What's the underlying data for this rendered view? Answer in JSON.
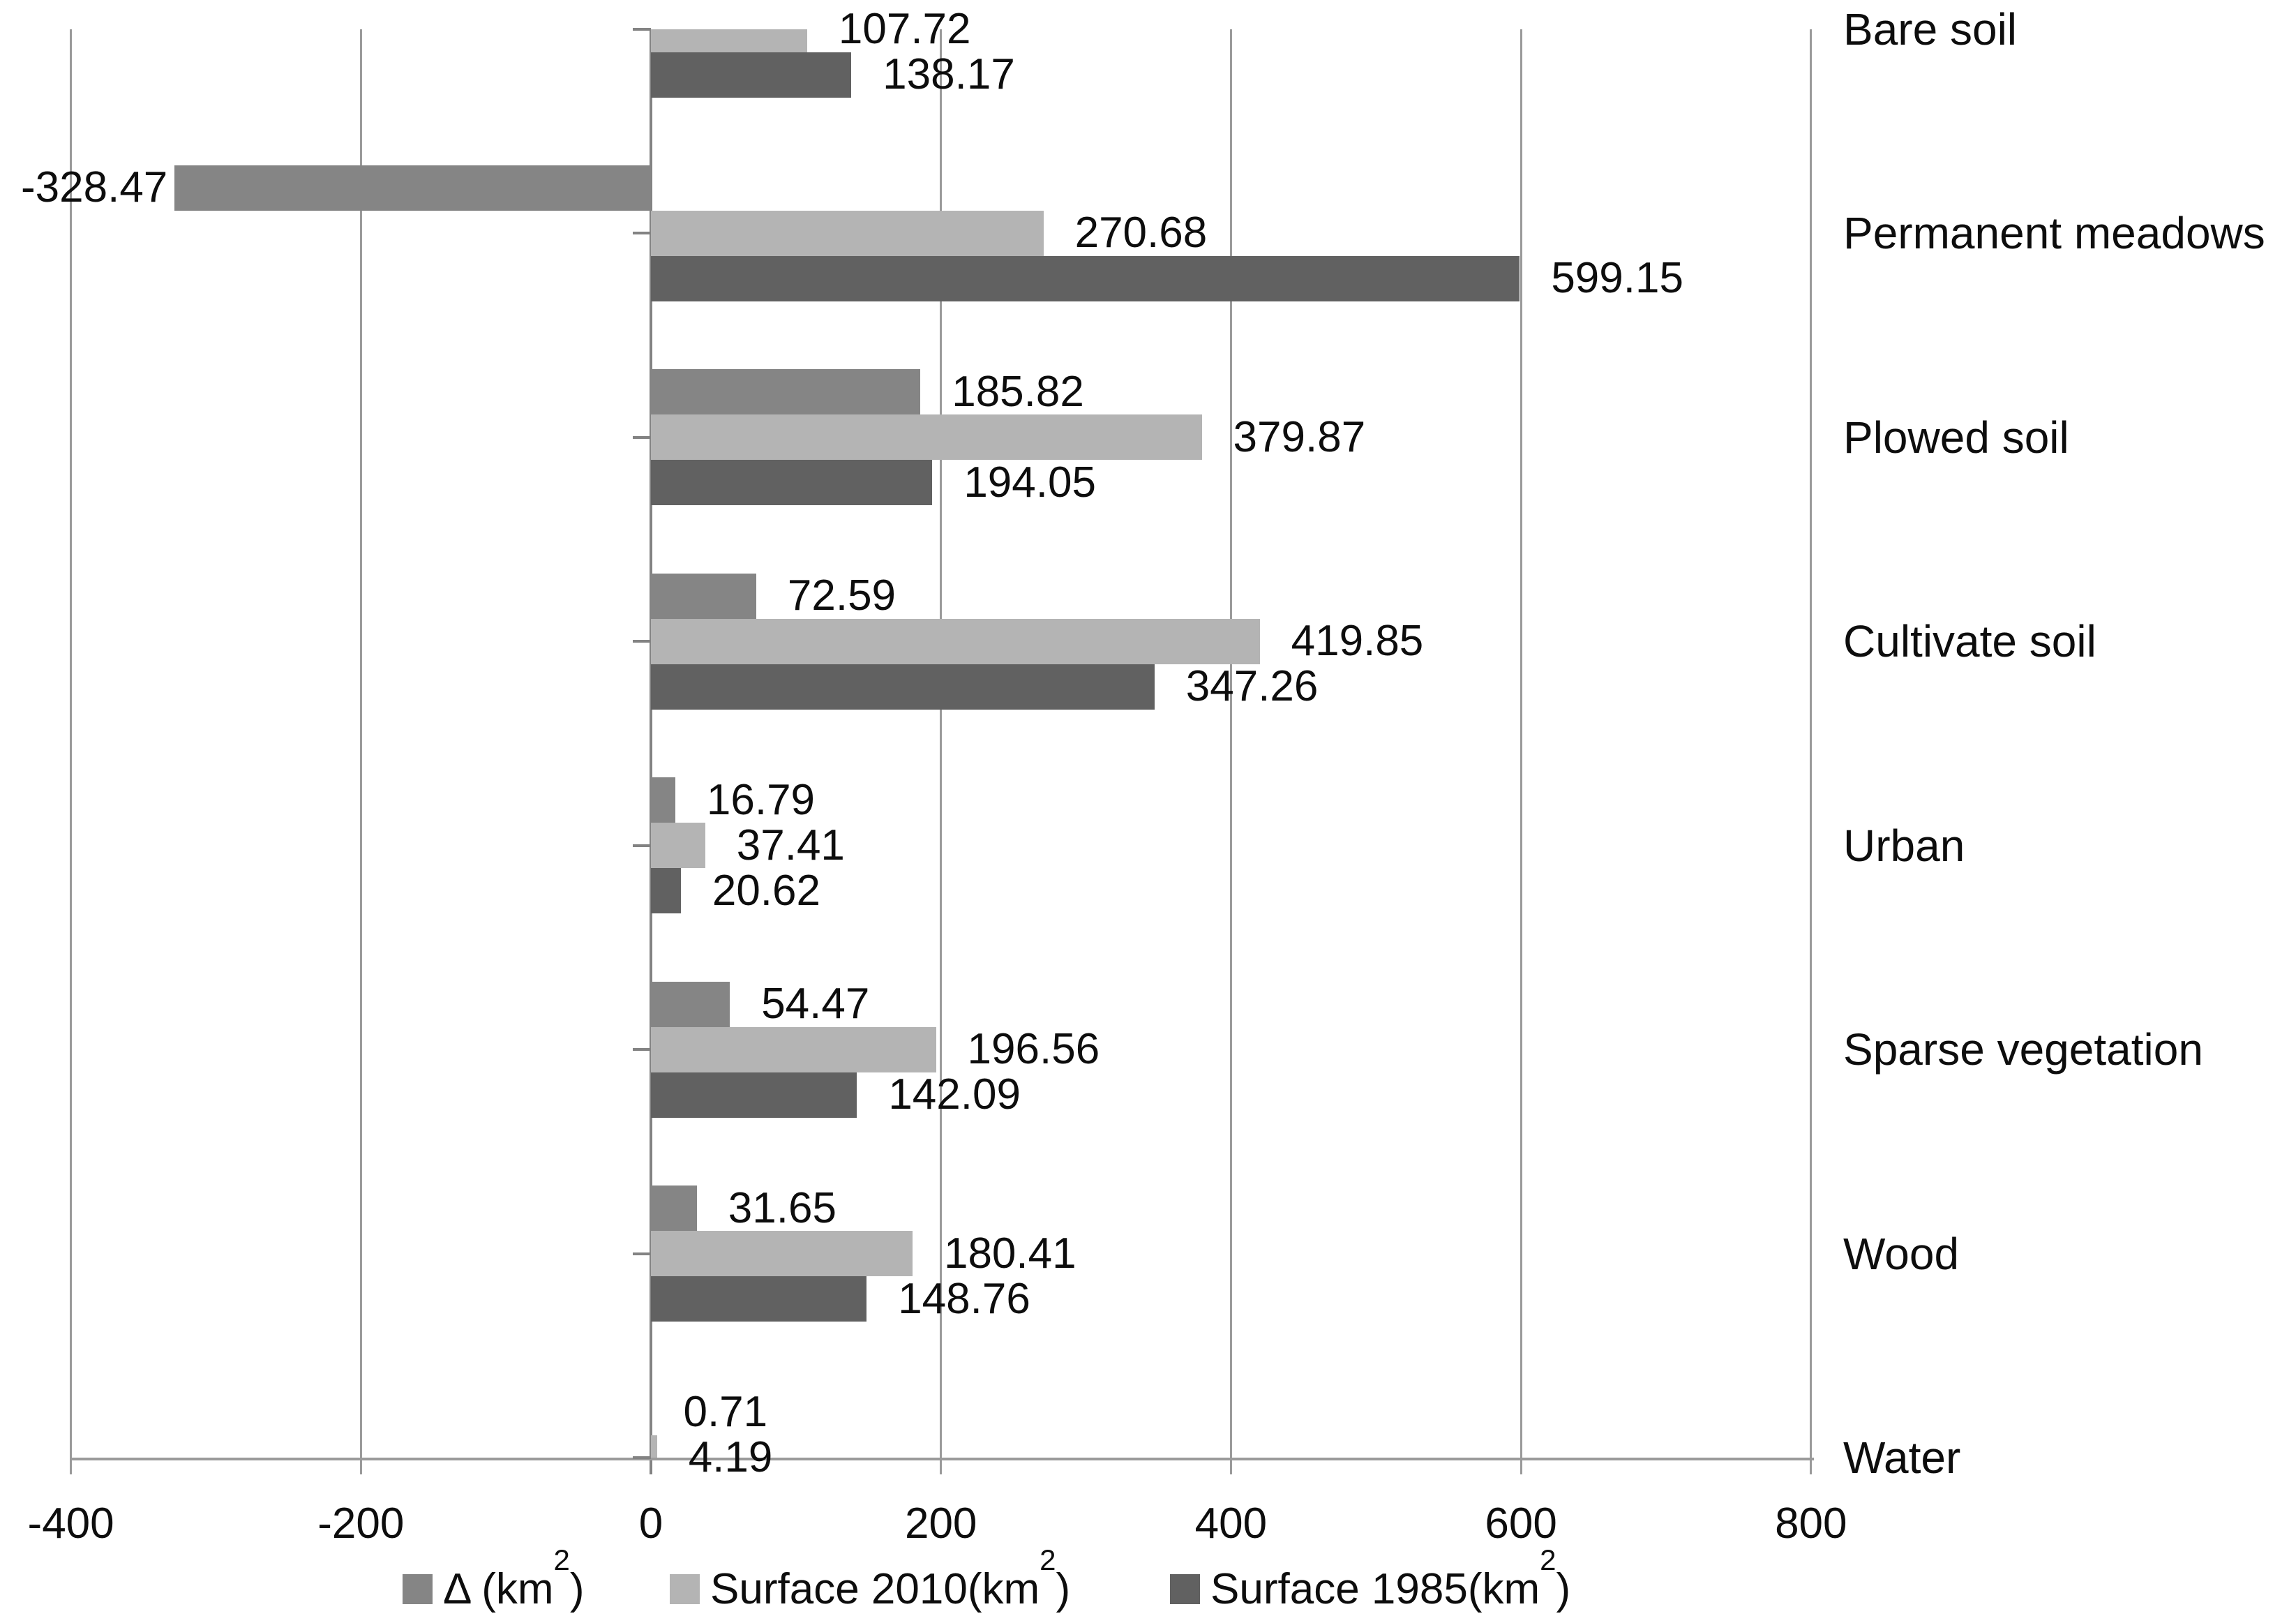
{
  "chart_data": {
    "type": "bar",
    "orientation": "horizontal",
    "title": "",
    "xlabel": "",
    "ylabel": "",
    "categories": [
      "Bare soil",
      "Permanent meadows",
      "Plowed soil",
      "Cultivate soil",
      "Urban",
      "Sparse vegetation",
      "Wood",
      "Water"
    ],
    "series": [
      {
        "name": "Δ (km2)",
        "color": "#858585",
        "values": [
          null,
          -328.47,
          185.82,
          72.59,
          16.79,
          54.47,
          31.65,
          0.71
        ]
      },
      {
        "name": "Surface 2010(km2)",
        "color": "#b4b4b4",
        "values": [
          107.72,
          270.68,
          379.87,
          419.85,
          37.41,
          196.56,
          180.41,
          4.19
        ]
      },
      {
        "name": "Surface 1985(km2)",
        "color": "#616161",
        "values": [
          138.17,
          599.15,
          194.05,
          347.26,
          20.62,
          142.09,
          148.76,
          null
        ]
      }
    ],
    "data_labels": [
      [
        null,
        "-328.47",
        "185.82",
        "72.59",
        "16.79",
        "54.47",
        "31.65",
        "0.71"
      ],
      [
        "107.72",
        "270.68",
        "379.87",
        "419.85",
        "37.41",
        "196.56",
        "180.41",
        "4.19"
      ],
      [
        "138.17",
        "599.15",
        "194.05",
        "347.26",
        "20.62",
        "142.09",
        "148.76",
        null
      ]
    ],
    "xlim": [
      -400,
      800
    ],
    "x_ticks": [
      "-400",
      "-200",
      "0",
      "200",
      "400",
      "600",
      "800"
    ],
    "x_tick_values": [
      -400,
      -200,
      0,
      200,
      400,
      600,
      800
    ],
    "grid": "vertical-only",
    "legend_position": "bottom"
  },
  "legend": {
    "items": [
      {
        "pre": "Δ (km",
        "sup": "2",
        "post": ")"
      },
      {
        "pre": "Surface 2010(km",
        "sup": "2",
        "post": ")"
      },
      {
        "pre": "Surface 1985(km",
        "sup": "2",
        "post": ")"
      }
    ]
  },
  "colors": {
    "delta": "#858585",
    "surface2010": "#b4b4b4",
    "surface1985": "#616161",
    "gridline": "#9a9a9a",
    "axis": "#838383",
    "text": "#0d0d0d",
    "background": "#ffffff"
  }
}
